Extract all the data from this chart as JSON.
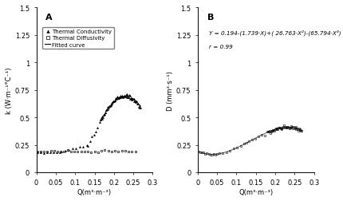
{
  "title_A": "A",
  "title_B": "B",
  "xlabel": "Q(m³·m⁻³)",
  "ylabel_A": "k (W·m⁻¹°C⁻¹)",
  "ylabel_B": "D (mm²·s⁻¹)",
  "xlim": [
    0,
    0.3
  ],
  "ylim_A": [
    0,
    1.5
  ],
  "ylim_B": [
    0,
    1.5
  ],
  "xticks": [
    0,
    0.05,
    0.1,
    0.15,
    0.2,
    0.25,
    0.3
  ],
  "xtick_labels": [
    "0",
    "0.05",
    "0.1",
    "0.15",
    "0.2",
    "0.25",
    "0.3"
  ],
  "yticks_A": [
    0,
    0.25,
    0.5,
    0.75,
    1.0,
    1.25,
    1.5
  ],
  "ytick_labels_A": [
    "0",
    "0.25",
    "0.5",
    "0.75",
    "1",
    "1.25",
    "1.5"
  ],
  "yticks_B": [
    0,
    0.25,
    0.5,
    0.75,
    1.0,
    1.25,
    1.5
  ],
  "ytick_labels_B": [
    "0",
    "0.25",
    "0.5",
    "0.75",
    "1",
    "1.25",
    "1.5"
  ],
  "equation": "Y = 0.194-(1.739·X)+( 26.763·X²)-(65.794·X³)",
  "r_value": "r = 0.99",
  "legend_entries": [
    "Thermal Conductivity",
    "Thermal Diffusivity",
    "Fitted curve"
  ],
  "font_size": 6,
  "line_color": "gray"
}
